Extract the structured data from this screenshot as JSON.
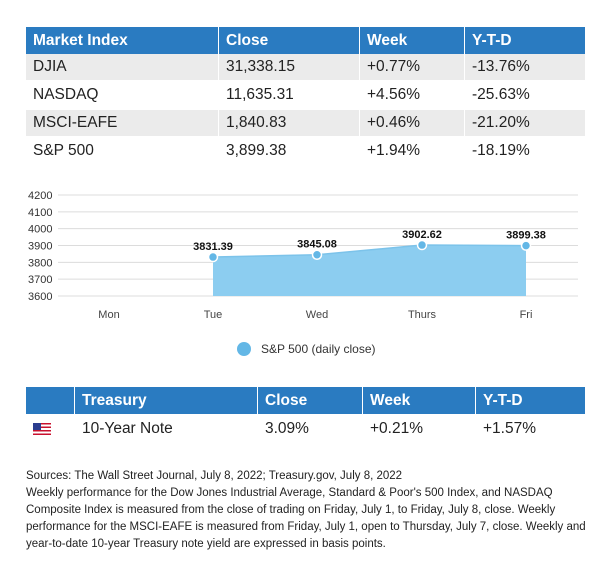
{
  "market_table": {
    "headers": [
      "Market Index",
      "Close",
      "Week",
      "Y-T-D"
    ],
    "rows": [
      {
        "name": "DJIA",
        "close": "31,338.15",
        "week": "+0.77%",
        "ytd": "-13.76%"
      },
      {
        "name": "NASDAQ",
        "close": "11,635.31",
        "week": "+4.56%",
        "ytd": "-25.63%"
      },
      {
        "name": "MSCI-EAFE",
        "close": "1,840.83",
        "week": "+0.46%",
        "ytd": "-21.20%"
      },
      {
        "name": "S&P 500",
        "close": "3,899.38",
        "week": "+1.94%",
        "ytd": "-18.19%"
      }
    ]
  },
  "chart_data": {
    "type": "area",
    "categories": [
      "Mon",
      "Tue",
      "Wed",
      "Thurs",
      "Fri"
    ],
    "series": [
      {
        "name": "S&P 500 (daily close)",
        "values": [
          null,
          3831.39,
          3845.08,
          3902.62,
          3899.38
        ]
      }
    ],
    "data_labels": [
      "",
      "3831.39",
      "3845.08",
      "3902.62",
      "3899.38"
    ],
    "yticks": [
      3600,
      3700,
      3800,
      3900,
      4000,
      4100,
      4200
    ],
    "ylim": [
      3600,
      4200
    ],
    "grid": true,
    "legend_position": "bottom",
    "color": "#8ccdf0",
    "point_color": "#63b7e6"
  },
  "legend": {
    "label": "S&P 500 (daily close)"
  },
  "treasury_table": {
    "headers": [
      "",
      "Treasury",
      "Close",
      "Week",
      "Y-T-D"
    ],
    "row": {
      "flag_icon": "us-flag-icon",
      "name": "10-Year Note",
      "close": "3.09%",
      "week": "+0.21%",
      "ytd": "+1.57%"
    }
  },
  "notes": {
    "sources": "Sources: The Wall Street Journal, July 8, 2022; Treasury.gov, July 8, 2022",
    "body": "Weekly performance for the Dow Jones Industrial Average, Standard & Poor's 500 Index, and NASDAQ Composite Index is measured from the close of trading on Friday, July 1, to Friday, July 8, close. Weekly performance for the MSCI-EAFE is measured from Friday, July 1, open to Thursday, July 7, close. Weekly and year-to-date 10-year Treasury note yield are expressed in basis points."
  }
}
